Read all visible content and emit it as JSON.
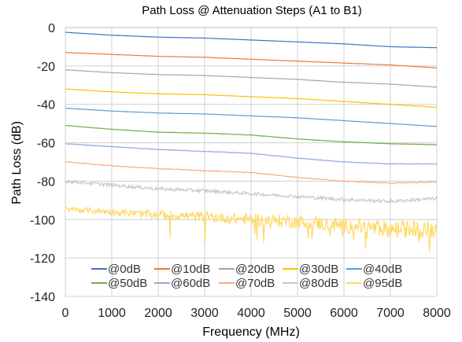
{
  "chart_data": {
    "type": "line",
    "title": "Path Loss @ Attenuation Steps (A1 to B1)",
    "xlabel": "Frequency (MHz)",
    "ylabel": "Path Loss (dB)",
    "xlim": [
      0,
      8000
    ],
    "ylim": [
      -140,
      0
    ],
    "xticks": [
      0,
      1000,
      2000,
      3000,
      4000,
      5000,
      6000,
      7000,
      8000
    ],
    "yticks": [
      0,
      -20,
      -40,
      -60,
      -80,
      -100,
      -120,
      -140
    ],
    "grid": true,
    "legend_position": "bottom-inside",
    "x": [
      0,
      1000,
      2000,
      3000,
      4000,
      5000,
      6000,
      7000,
      8000
    ],
    "series": [
      {
        "name": "@0dB",
        "color": "#4472c4",
        "values": [
          -2.5,
          -4,
          -5,
          -5.5,
          -6.5,
          -7.5,
          -8.5,
          -10,
          -10.5
        ]
      },
      {
        "name": "@10dB",
        "color": "#ed7d31",
        "values": [
          -13,
          -14,
          -15,
          -15.5,
          -16.5,
          -17.5,
          -18.5,
          -19.5,
          -21
        ]
      },
      {
        "name": "@20dB",
        "color": "#a5a5a5",
        "values": [
          -22,
          -23.5,
          -24.5,
          -25,
          -26,
          -27,
          -28.5,
          -29.5,
          -31
        ]
      },
      {
        "name": "@30dB",
        "color": "#ffc000",
        "values": [
          -32,
          -33.5,
          -34.5,
          -35,
          -36,
          -37,
          -38.5,
          -40,
          -41.5
        ]
      },
      {
        "name": "@40dB",
        "color": "#5b9bd5",
        "values": [
          -42,
          -43.5,
          -44.5,
          -45,
          -46,
          -47,
          -48.5,
          -50,
          -51.5
        ]
      },
      {
        "name": "@50dB",
        "color": "#70ad47",
        "values": [
          -51,
          -53,
          -54.5,
          -55,
          -56,
          -58,
          -59.5,
          -60.5,
          -61
        ]
      },
      {
        "name": "@60dB",
        "color": "#8faadc",
        "values": [
          -60.5,
          -62,
          -63.5,
          -64.5,
          -65.5,
          -68,
          -70,
          -71,
          -71
        ]
      },
      {
        "name": "@70dB",
        "color": "#f4b183",
        "values": [
          -70,
          -72,
          -73.5,
          -74.5,
          -75.5,
          -78,
          -80,
          -81,
          -80.5
        ]
      },
      {
        "name": "@80dB",
        "color": "#c9c9c9",
        "values": [
          -80,
          -82,
          -84,
          -85,
          -86.5,
          -88,
          -89.5,
          -90.5,
          -89
        ]
      },
      {
        "name": "@95dB",
        "color": "#ffd966",
        "values": [
          -94.5,
          -96,
          -97.5,
          -98.5,
          -100,
          -101,
          -103,
          -105,
          -105
        ]
      }
    ]
  }
}
